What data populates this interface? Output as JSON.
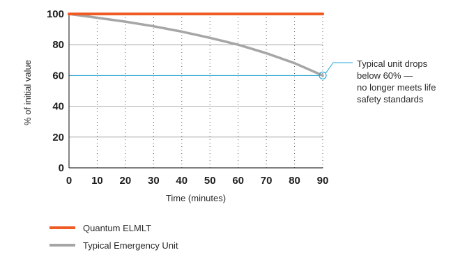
{
  "chart_data": {
    "type": "line",
    "xlabel": "Time (minutes)",
    "ylabel": "% of initial value",
    "xlim": [
      0,
      90
    ],
    "ylim": [
      0,
      100
    ],
    "x_ticks": [
      "0",
      "10",
      "20",
      "30",
      "40",
      "50",
      "60",
      "70",
      "80",
      "90"
    ],
    "y_ticks": [
      "0",
      "20",
      "40",
      "60",
      "80",
      "100"
    ],
    "grid": "horizontal solid at 20-unit steps; vertical dotted at 10-minute steps",
    "threshold": {
      "y": 60,
      "color": "#29a9d6"
    },
    "series": [
      {
        "name": "Quantum ELMLT",
        "color": "#f05a23",
        "x": [
          0,
          10,
          20,
          30,
          40,
          50,
          60,
          70,
          80,
          90
        ],
        "y": [
          100,
          100,
          100,
          100,
          100,
          100,
          100,
          100,
          100,
          100
        ]
      },
      {
        "name": "Typical Emergency Unit",
        "color": "#a6a6a6",
        "x": [
          0,
          10,
          20,
          30,
          40,
          50,
          60,
          70,
          80,
          90
        ],
        "y": [
          100,
          97.5,
          95,
          92,
          88.5,
          84.5,
          80,
          74.5,
          68,
          60
        ]
      }
    ],
    "annotation": {
      "x": 90,
      "y": 60,
      "text": "Typical unit drops below 60% — no longer meets life safety standards",
      "lines": [
        "Typical unit drops",
        "below 60% —",
        "no longer meets life",
        "safety standards"
      ],
      "marker_color": "#29a9d6"
    },
    "legend": {
      "placement": "bottom-left",
      "entries": [
        {
          "label": "Quantum ELMLT",
          "color": "#f05a23"
        },
        {
          "label": "Typical Emergency Unit",
          "color": "#a6a6a6"
        }
      ]
    }
  }
}
